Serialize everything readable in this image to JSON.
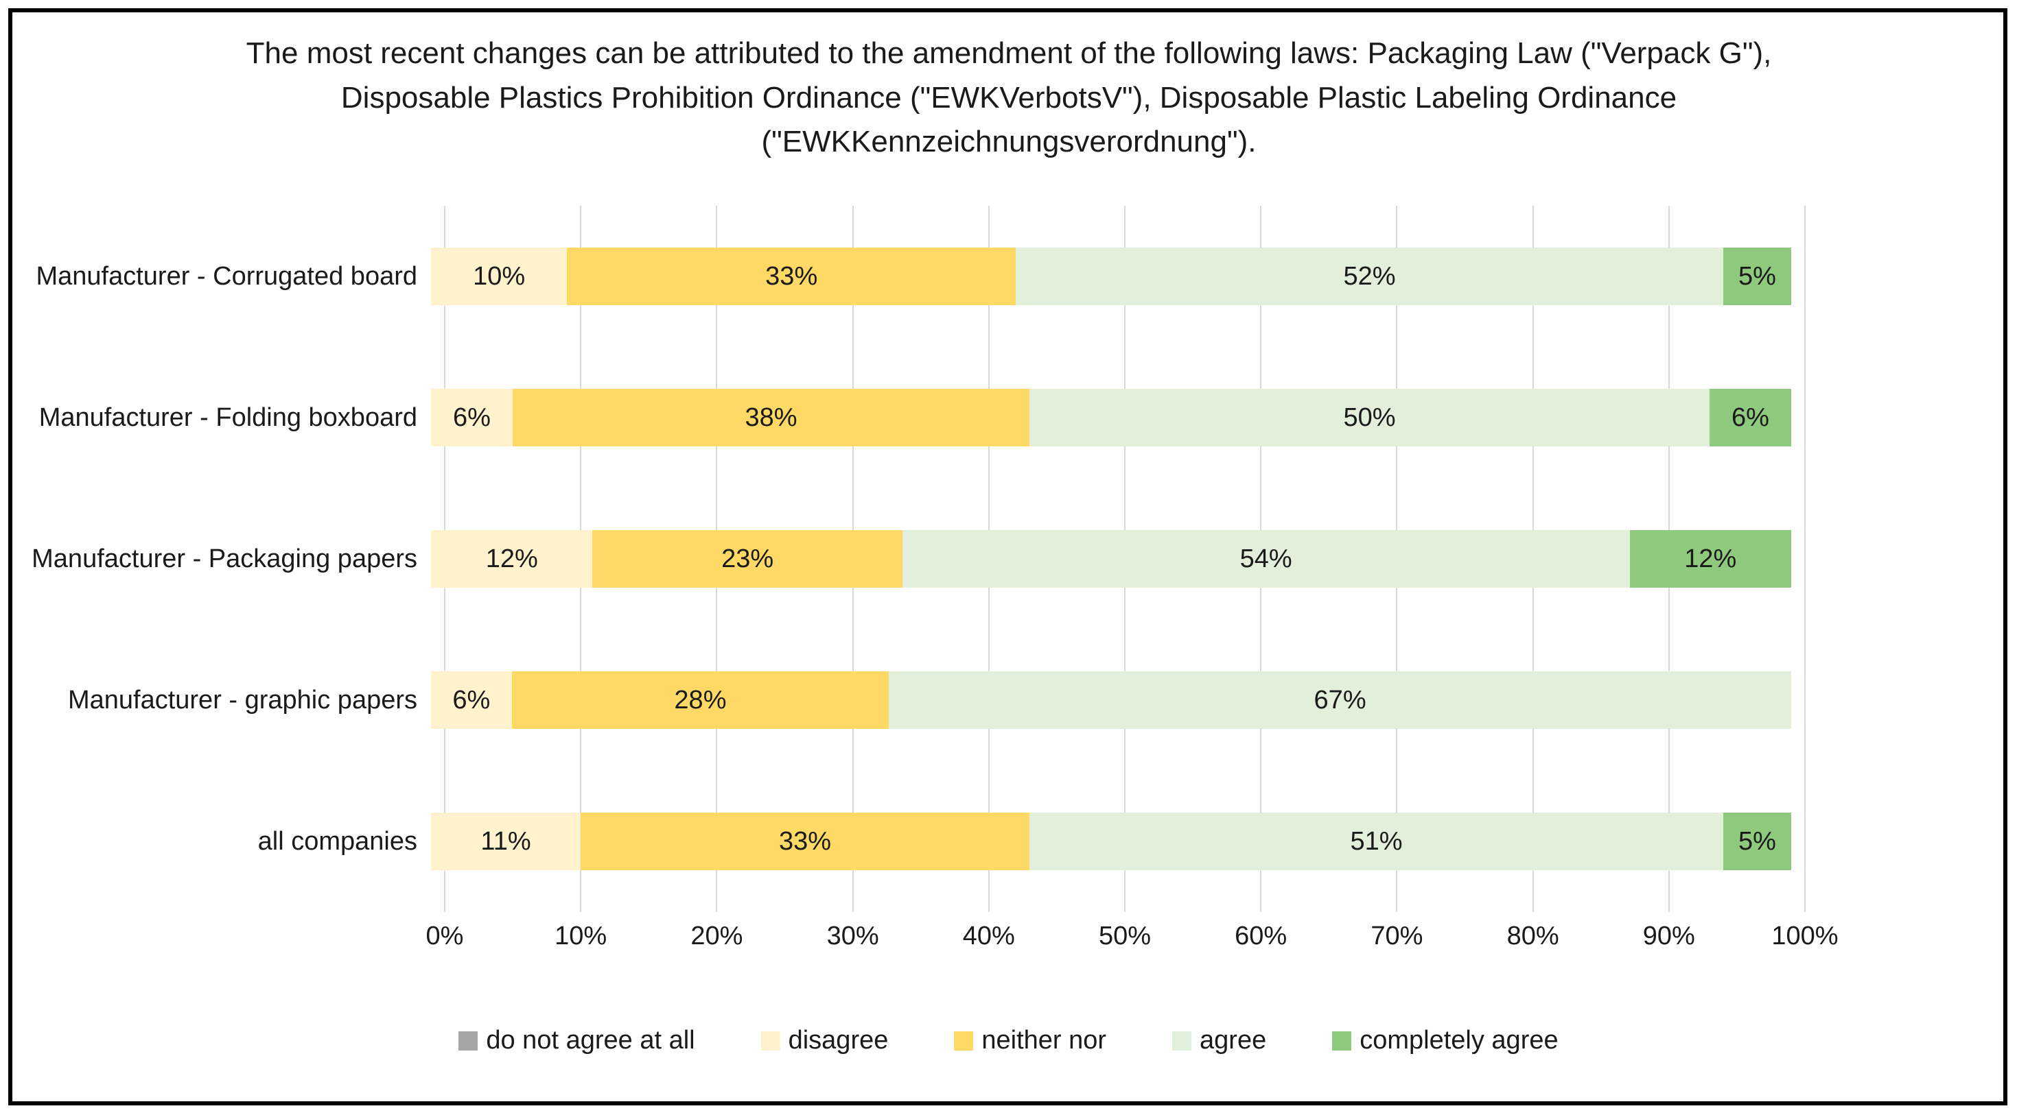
{
  "title": "The most recent changes can be attributed to the amendment of the following laws:  Packaging Law (\"Verpack G\"), Disposable Plastics Prohibition Ordinance (\"EWKVerbotsV\"),  Disposable Plastic Labeling Ordinance (\"EWKKennzeichnungsverordnung\").",
  "chart_data": {
    "type": "bar",
    "orientation": "horizontal",
    "stacked": true,
    "normalized_to_100": true,
    "title": "The most recent changes can be attributed to the amendment of the following laws:  Packaging Law (\"Verpack G\"), Disposable Plastics Prohibition Ordinance (\"EWKVerbotsV\"),  Disposable Plastic Labeling Ordinance (\"EWKKennzeichnungsverordnung\").",
    "categories": [
      "Manufacturer - Corrugated board",
      "Manufacturer - Folding boxboard",
      "Manufacturer - Packaging papers",
      "Manufacturer - graphic papers",
      "all companies"
    ],
    "series": [
      {
        "name": "do not agree at all",
        "color": "#a6a6a6",
        "values": [
          0,
          0,
          0,
          0,
          0
        ]
      },
      {
        "name": "disagree",
        "color": "#fff2cc",
        "values": [
          10,
          6,
          12,
          6,
          11
        ]
      },
      {
        "name": "neither nor",
        "color": "#ffd966",
        "values": [
          33,
          38,
          23,
          28,
          33
        ]
      },
      {
        "name": "agree",
        "color": "#e2efda",
        "values": [
          52,
          50,
          54,
          67,
          51
        ]
      },
      {
        "name": "completely agree",
        "color": "#8fc97e",
        "values": [
          5,
          6,
          12,
          0,
          5
        ]
      }
    ],
    "data_label_format": "percent",
    "xlim": [
      0,
      100
    ],
    "x_ticks": [
      "0%",
      "10%",
      "20%",
      "30%",
      "40%",
      "50%",
      "60%",
      "70%",
      "80%",
      "90%",
      "100%"
    ],
    "grid": true,
    "gridline_color": "#d9d9d9",
    "legend_position": "bottom",
    "legend_labels": [
      "do not agree at all",
      "disagree",
      "neither nor",
      "agree",
      "completely agree"
    ]
  },
  "colors": {
    "frame_border": "#000000",
    "background": "#ffffff",
    "text": "#1a1a1a"
  }
}
